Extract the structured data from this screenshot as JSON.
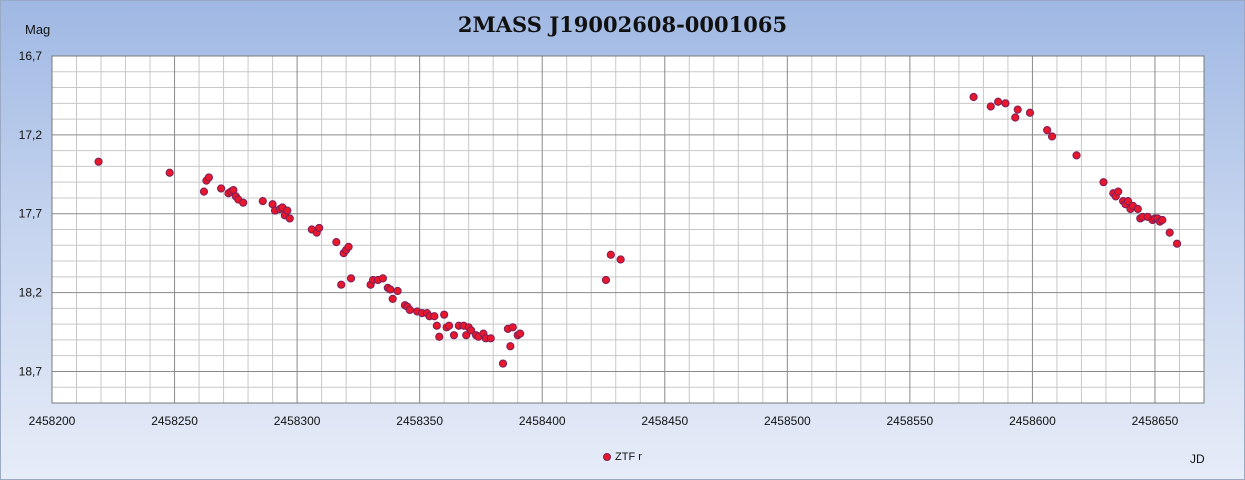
{
  "chart_data": {
    "type": "scatter",
    "title": "2MASS J19002608-0001065",
    "ylabel": "Mag",
    "xlabel": "JD",
    "xlim": [
      2458200,
      2458670
    ],
    "ylim": [
      16.7,
      18.9
    ],
    "y_inverted": true,
    "x_ticks": [
      2458200,
      2458250,
      2458300,
      2458350,
      2458400,
      2458450,
      2458500,
      2458550,
      2458600,
      2458650
    ],
    "y_ticks": [
      "16,7",
      "17,2",
      "17,7",
      "18,2",
      "18,7"
    ],
    "y_tick_values": [
      16.7,
      17.2,
      17.7,
      18.2,
      18.7
    ],
    "grid": true,
    "legend_position": "bottom-center",
    "marker_fill": "#e8172b",
    "marker_stroke": "#7a1f5a",
    "series": [
      {
        "name": "ZTF r",
        "points": [
          [
            2458219,
            17.37
          ],
          [
            2458248,
            17.44
          ],
          [
            2458262,
            17.56
          ],
          [
            2458263,
            17.49
          ],
          [
            2458264,
            17.47
          ],
          [
            2458269,
            17.54
          ],
          [
            2458272,
            17.57
          ],
          [
            2458273,
            17.56
          ],
          [
            2458274,
            17.55
          ],
          [
            2458275,
            17.59
          ],
          [
            2458276,
            17.61
          ],
          [
            2458278,
            17.63
          ],
          [
            2458286,
            17.62
          ],
          [
            2458290,
            17.64
          ],
          [
            2458291,
            17.68
          ],
          [
            2458293,
            17.67
          ],
          [
            2458294,
            17.66
          ],
          [
            2458295,
            17.71
          ],
          [
            2458296,
            17.68
          ],
          [
            2458297,
            17.73
          ],
          [
            2458306,
            17.8
          ],
          [
            2458308,
            17.82
          ],
          [
            2458309,
            17.79
          ],
          [
            2458316,
            17.88
          ],
          [
            2458318,
            18.15
          ],
          [
            2458319,
            17.95
          ],
          [
            2458320,
            17.93
          ],
          [
            2458321,
            17.91
          ],
          [
            2458322,
            18.11
          ],
          [
            2458330,
            18.15
          ],
          [
            2458331,
            18.12
          ],
          [
            2458333,
            18.12
          ],
          [
            2458335,
            18.11
          ],
          [
            2458337,
            18.17
          ],
          [
            2458338,
            18.18
          ],
          [
            2458339,
            18.24
          ],
          [
            2458341,
            18.19
          ],
          [
            2458344,
            18.28
          ],
          [
            2458345,
            18.29
          ],
          [
            2458346,
            18.31
          ],
          [
            2458349,
            18.32
          ],
          [
            2458351,
            18.33
          ],
          [
            2458353,
            18.33
          ],
          [
            2458354,
            18.35
          ],
          [
            2458356,
            18.35
          ],
          [
            2458357,
            18.41
          ],
          [
            2458358,
            18.48
          ],
          [
            2458360,
            18.34
          ],
          [
            2458361,
            18.42
          ],
          [
            2458362,
            18.41
          ],
          [
            2458364,
            18.47
          ],
          [
            2458366,
            18.41
          ],
          [
            2458368,
            18.41
          ],
          [
            2458369,
            18.47
          ],
          [
            2458370,
            18.42
          ],
          [
            2458371,
            18.44
          ],
          [
            2458373,
            18.47
          ],
          [
            2458374,
            18.48
          ],
          [
            2458376,
            18.46
          ],
          [
            2458377,
            18.49
          ],
          [
            2458379,
            18.49
          ],
          [
            2458384,
            18.65
          ],
          [
            2458386,
            18.43
          ],
          [
            2458387,
            18.54
          ],
          [
            2458388,
            18.42
          ],
          [
            2458390,
            18.47
          ],
          [
            2458391,
            18.46
          ],
          [
            2458426,
            18.12
          ],
          [
            2458428,
            17.96
          ],
          [
            2458432,
            17.99
          ],
          [
            2458576,
            16.96
          ],
          [
            2458583,
            17.02
          ],
          [
            2458586,
            16.99
          ],
          [
            2458589,
            17.0
          ],
          [
            2458593,
            17.09
          ],
          [
            2458594,
            17.04
          ],
          [
            2458599,
            17.06
          ],
          [
            2458606,
            17.17
          ],
          [
            2458608,
            17.21
          ],
          [
            2458618,
            17.33
          ],
          [
            2458629,
            17.5
          ],
          [
            2458633,
            17.57
          ],
          [
            2458634,
            17.59
          ],
          [
            2458635,
            17.56
          ],
          [
            2458637,
            17.62
          ],
          [
            2458638,
            17.64
          ],
          [
            2458639,
            17.62
          ],
          [
            2458640,
            17.67
          ],
          [
            2458641,
            17.65
          ],
          [
            2458643,
            17.67
          ],
          [
            2458644,
            17.73
          ],
          [
            2458645,
            17.72
          ],
          [
            2458647,
            17.72
          ],
          [
            2458649,
            17.74
          ],
          [
            2458650,
            17.73
          ],
          [
            2458651,
            17.73
          ],
          [
            2458652,
            17.75
          ],
          [
            2458653,
            17.74
          ],
          [
            2458656,
            17.82
          ],
          [
            2458659,
            17.89
          ]
        ]
      }
    ]
  }
}
